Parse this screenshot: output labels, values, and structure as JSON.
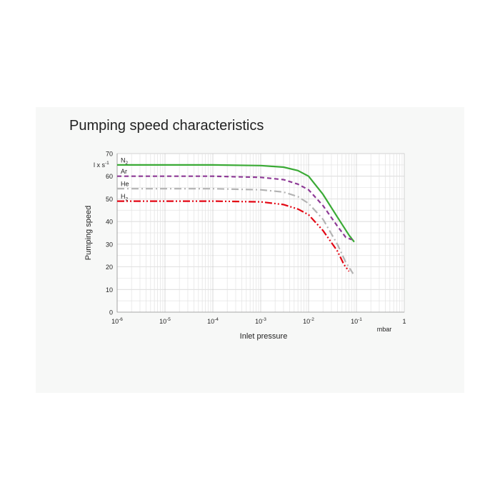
{
  "chart_data": {
    "type": "line",
    "title": "Pumping speed characteristics",
    "xlabel": "Inlet pressure",
    "ylabel": "Pumping speed",
    "yunit": "l x s-1",
    "xunit": "mbar",
    "xscale": "log",
    "xlim": [
      1e-06,
      1
    ],
    "ylim": [
      0,
      70
    ],
    "grid": true,
    "x_ticks": [
      {
        "value": 1e-06,
        "base": "10",
        "exp": "-6"
      },
      {
        "value": 1e-05,
        "base": "10",
        "exp": "-5"
      },
      {
        "value": 0.0001,
        "base": "10",
        "exp": "-4"
      },
      {
        "value": 0.001,
        "base": "10",
        "exp": "-3"
      },
      {
        "value": 0.01,
        "base": "10",
        "exp": "-2"
      },
      {
        "value": 0.1,
        "base": "10",
        "exp": "-1"
      },
      {
        "value": 1,
        "base": "1",
        "exp": ""
      }
    ],
    "y_ticks": [
      0,
      10,
      20,
      30,
      40,
      50,
      60,
      70
    ],
    "series": [
      {
        "name": "N2",
        "label_main": "N",
        "label_sub": "2",
        "color": "#3aaa35",
        "style": "solid",
        "points": [
          [
            1e-06,
            65
          ],
          [
            0.0001,
            65
          ],
          [
            0.001,
            64.7
          ],
          [
            0.003,
            64
          ],
          [
            0.006,
            62.5
          ],
          [
            0.01,
            60
          ],
          [
            0.02,
            52
          ],
          [
            0.04,
            42
          ],
          [
            0.07,
            34
          ],
          [
            0.09,
            31
          ]
        ]
      },
      {
        "name": "Ar",
        "label_main": "Ar",
        "label_sub": "",
        "color": "#8e3a96",
        "style": "dash",
        "points": [
          [
            1e-06,
            60
          ],
          [
            0.0001,
            60
          ],
          [
            0.001,
            59.5
          ],
          [
            0.003,
            58.5
          ],
          [
            0.006,
            56.5
          ],
          [
            0.01,
            54
          ],
          [
            0.02,
            47
          ],
          [
            0.04,
            38
          ],
          [
            0.06,
            33
          ],
          [
            0.08,
            32
          ]
        ]
      },
      {
        "name": "He",
        "label_main": "He",
        "label_sub": "",
        "color": "#b3b3b3",
        "style": "dashdot",
        "points": [
          [
            1e-06,
            54.5
          ],
          [
            0.0001,
            54.5
          ],
          [
            0.001,
            54
          ],
          [
            0.003,
            53
          ],
          [
            0.006,
            51
          ],
          [
            0.01,
            48
          ],
          [
            0.02,
            41
          ],
          [
            0.04,
            30
          ],
          [
            0.06,
            22
          ],
          [
            0.085,
            17
          ]
        ]
      },
      {
        "name": "H2",
        "label_main": "H",
        "label_sub": "2",
        "color": "#e30613",
        "style": "dashdotdot",
        "points": [
          [
            1e-06,
            49
          ],
          [
            0.0001,
            49
          ],
          [
            0.001,
            48.7
          ],
          [
            0.003,
            47.5
          ],
          [
            0.006,
            45.5
          ],
          [
            0.01,
            43
          ],
          [
            0.02,
            36
          ],
          [
            0.04,
            27
          ],
          [
            0.055,
            21
          ],
          [
            0.07,
            18
          ]
        ]
      }
    ]
  }
}
